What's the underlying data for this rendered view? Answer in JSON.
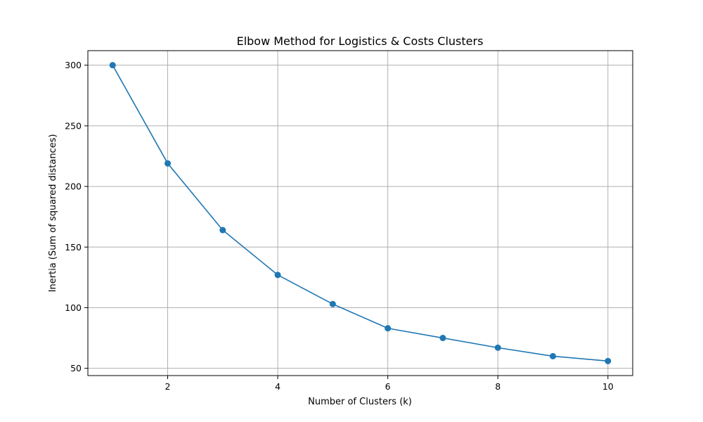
{
  "chart_data": {
    "type": "line",
    "title": "Elbow Method for Logistics & Costs Clusters",
    "xlabel": "Number of Clusters (k)",
    "ylabel": "Inertia (Sum of squared distances)",
    "x": [
      1,
      2,
      3,
      4,
      5,
      6,
      7,
      8,
      9,
      10
    ],
    "series": [
      {
        "values": [
          300,
          219,
          164,
          127,
          103,
          83,
          75,
          67,
          60,
          56
        ]
      }
    ],
    "xlim": [
      0.55,
      10.45
    ],
    "ylim": [
      44,
      312
    ],
    "xticks": [
      2,
      4,
      6,
      8,
      10
    ],
    "yticks": [
      50,
      100,
      150,
      200,
      250,
      300
    ],
    "grid": true,
    "markers": true,
    "color": "#1f77b4"
  }
}
